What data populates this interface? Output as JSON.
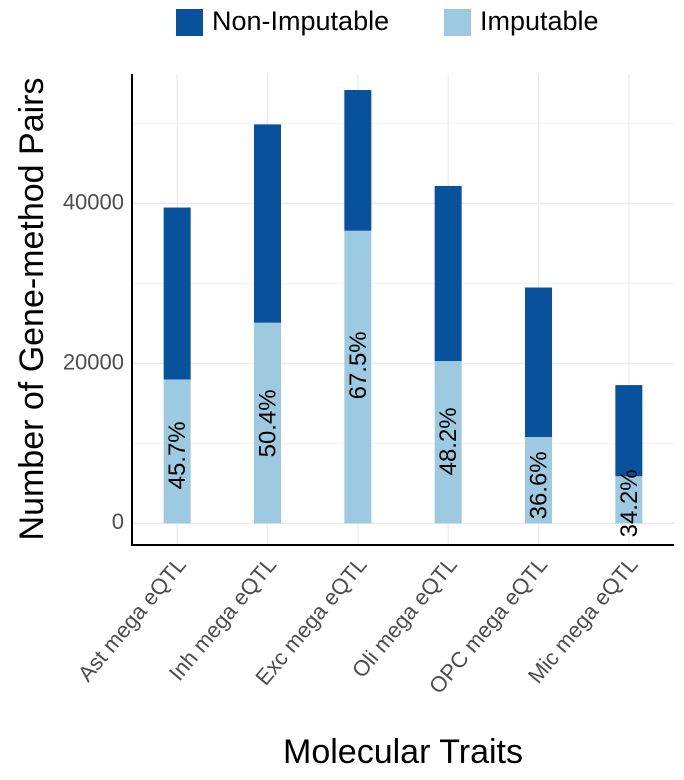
{
  "chart_data": {
    "type": "bar",
    "stacked": true,
    "title": "",
    "xlabel": "Molecular Traits",
    "ylabel": "Number of Gene-method Pairs",
    "categories": [
      "Ast mega eQTL",
      "Inh mega eQTL",
      "Exc mega eQTL",
      "Oli mega eQTL",
      "OPC mega eQTL",
      "Mic mega eQTL"
    ],
    "series": [
      {
        "name": "Imputable",
        "color": "#9ecae1",
        "values": [
          18000,
          25100,
          36600,
          20300,
          10800,
          5900
        ]
      },
      {
        "name": "Non-Imputable",
        "color": "#08519c",
        "values": [
          21500,
          24800,
          17600,
          21900,
          18700,
          11400
        ]
      }
    ],
    "legend_order": [
      "Non-Imputable",
      "Imputable"
    ],
    "legend_position": "top",
    "bar_labels": [
      "45.7%",
      "50.4%",
      "67.5%",
      "48.2%",
      "36.6%",
      "34.2%"
    ],
    "yticks": [
      0,
      20000,
      40000
    ],
    "ytick_labels": [
      "0",
      "20000",
      "40000"
    ],
    "ylim": [
      -2700,
      56200
    ],
    "grid": true
  }
}
